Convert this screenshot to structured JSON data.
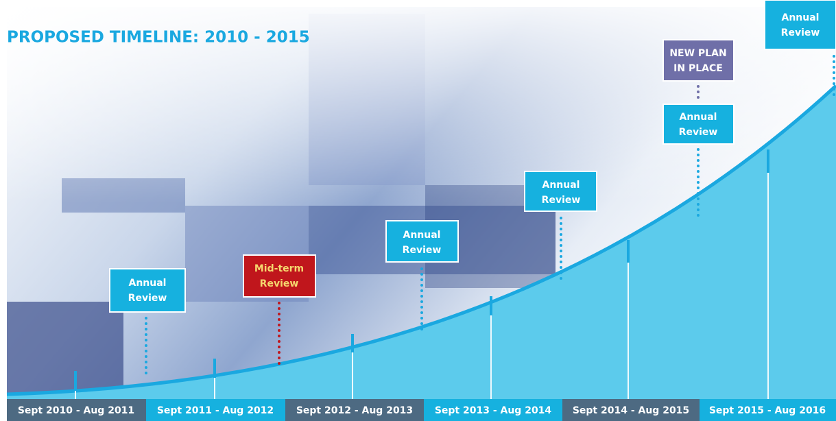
{
  "header": {
    "title": "PROPOSED TIMELINE: 2010 - 2015"
  },
  "periods": [
    "Sept 2010 - Aug 2011",
    "Sept 2011 - Aug 2012",
    "Sept 2012 - Aug 2013",
    "Sept 2013 - Aug 2014",
    "Sept 2014 - Aug 2015",
    "Sept 2015 - Aug 2016"
  ],
  "milestones": [
    {
      "lines": [
        "Annual",
        "Review"
      ]
    },
    {
      "lines": [
        "Mid-term",
        "Review"
      ]
    },
    {
      "lines": [
        "Annual",
        "Review"
      ]
    },
    {
      "lines": [
        "Annual",
        "Review"
      ]
    },
    {
      "lines": [
        "NEW PLAN",
        "IN PLACE"
      ]
    },
    {
      "lines": [
        "Annual",
        "Review"
      ]
    },
    {
      "lines": [
        "Annual",
        "Review"
      ]
    }
  ]
}
